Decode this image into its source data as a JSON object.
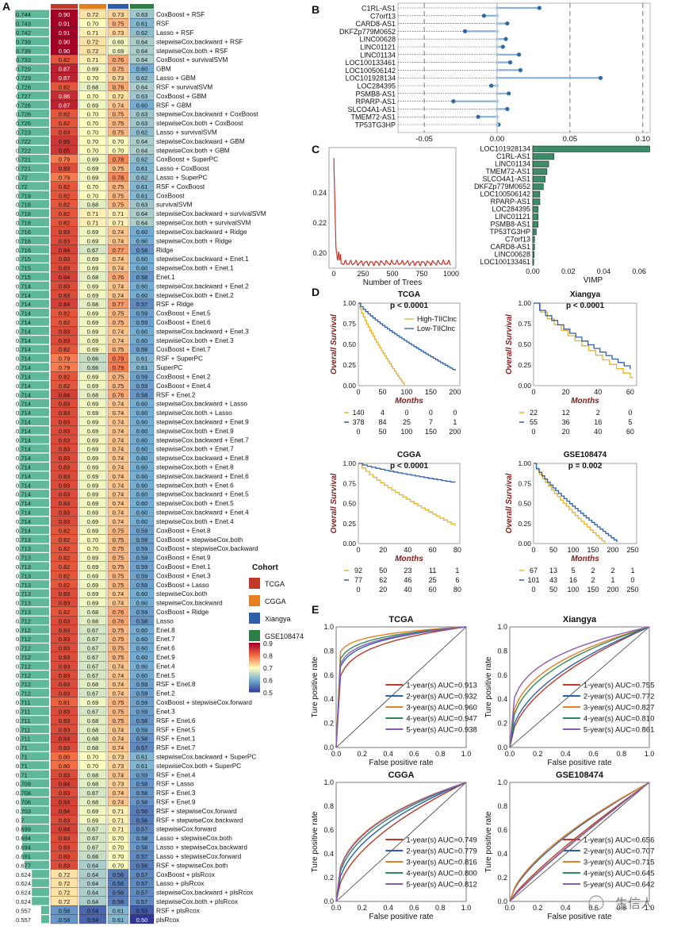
{
  "panels": {
    "A": "A",
    "B": "B",
    "C": "C",
    "D": "D",
    "E": "E"
  },
  "heatmap": {
    "rows": [
      [
        "0.744",
        "0.90",
        "0.72",
        "0.73",
        "0.63",
        "CoxBoost + RSF"
      ],
      [
        "0.743",
        "0.91",
        "0.70",
        "0.75",
        "0.61",
        "RSF"
      ],
      [
        "0.742",
        "0.91",
        "0.71",
        "0.73",
        "0.62",
        "Lasso + RSF"
      ],
      [
        "0.739",
        "0.90",
        "0.72",
        "0.69",
        "0.64",
        "stepwiseCox.backward + RSF"
      ],
      [
        "0.739",
        "0.90",
        "0.72",
        "0.69",
        "0.64",
        "stepwiseCox.both + RSF"
      ],
      [
        "0.733",
        "0.82",
        "0.71",
        "0.76",
        "0.64",
        "CoxBoost + survivalSVM"
      ],
      [
        "0.729",
        "0.87",
        "0.69",
        "0.75",
        "0.60",
        "GBM"
      ],
      [
        "0.729",
        "0.87",
        "0.70",
        "0.73",
        "0.62",
        "Lasso + GBM"
      ],
      [
        "0.728",
        "0.82",
        "0.68",
        "0.76",
        "0.64",
        "RSF + survivalSVM"
      ],
      [
        "0.727",
        "0.86",
        "0.70",
        "0.72",
        "0.63",
        "CoxBoost + GBM"
      ],
      [
        "0.726",
        "0.87",
        "0.69",
        "0.74",
        "0.60",
        "RSF + GBM"
      ],
      [
        "0.726",
        "0.82",
        "0.70",
        "0.75",
        "0.63",
        "stepwiseCox.backward + CoxBoost"
      ],
      [
        "0.726",
        "0.82",
        "0.70",
        "0.75",
        "0.63",
        "stepwiseCox.both + CoxBoost"
      ],
      [
        "0.723",
        "0.83",
        "0.70",
        "0.75",
        "0.62",
        "Lasso + survivalSVM"
      ],
      [
        "0.722",
        "0.85",
        "0.70",
        "0.70",
        "0.64",
        "stepwiseCox.backward + GBM"
      ],
      [
        "0.722",
        "0.85",
        "0.70",
        "0.70",
        "0.64",
        "stepwiseCox.both + GBM"
      ],
      [
        "0.721",
        "0.79",
        "0.69",
        "0.78",
        "0.62",
        "CoxBoost + SuperPC"
      ],
      [
        "0.721",
        "0.83",
        "0.69",
        "0.75",
        "0.61",
        "Lasso + CoxBoost"
      ],
      [
        "0.72",
        "0.79",
        "0.69",
        "0.78",
        "0.62",
        "Lasso + SuperPC"
      ],
      [
        "0.72",
        "0.82",
        "0.70",
        "0.75",
        "0.61",
        "RSF + CoxBoost"
      ],
      [
        "0.719",
        "0.82",
        "0.70",
        "0.75",
        "0.61",
        "CoxBoost"
      ],
      [
        "0.718",
        "0.82",
        "0.68",
        "0.75",
        "0.63",
        "survivalSVM"
      ],
      [
        "0.718",
        "0.82",
        "0.71",
        "0.71",
        "0.64",
        "stepwiseCox.backward + survivalSVM"
      ],
      [
        "0.718",
        "0.82",
        "0.71",
        "0.71",
        "0.64",
        "stepwiseCox.both + survivalSVM"
      ],
      [
        "0.716",
        "0.83",
        "0.69",
        "0.74",
        "0.60",
        "stepwiseCox.backward + Ridge"
      ],
      [
        "0.716",
        "0.83",
        "0.69",
        "0.74",
        "0.60",
        "stepwiseCox.both + Ridge"
      ],
      [
        "0.716",
        "0.84",
        "0.67",
        "0.77",
        "0.58",
        "Ridge"
      ],
      [
        "0.715",
        "0.83",
        "0.69",
        "0.74",
        "0.60",
        "stepwiseCox.backward + Enet.1"
      ],
      [
        "0.715",
        "0.83",
        "0.69",
        "0.74",
        "0.60",
        "stepwiseCox.both + Enet.1"
      ],
      [
        "0.715",
        "0.84",
        "0.68",
        "0.76",
        "0.58",
        "Enet.1"
      ],
      [
        "0.714",
        "0.83",
        "0.69",
        "0.74",
        "0.60",
        "stepwiseCox.backward + Enet.2"
      ],
      [
        "0.714",
        "0.83",
        "0.69",
        "0.74",
        "0.60",
        "stepwiseCox.both + Enet.2"
      ],
      [
        "0.714",
        "0.84",
        "0.68",
        "0.77",
        "0.57",
        "RSF + Ridge"
      ],
      [
        "0.714",
        "0.82",
        "0.69",
        "0.75",
        "0.59",
        "CoxBoost + Enet.5"
      ],
      [
        "0.714",
        "0.82",
        "0.69",
        "0.75",
        "0.59",
        "CoxBoost + Enet.6"
      ],
      [
        "0.714",
        "0.83",
        "0.69",
        "0.74",
        "0.60",
        "stepwiseCox.backward + Enet.3"
      ],
      [
        "0.714",
        "0.83",
        "0.69",
        "0.74",
        "0.60",
        "stepwiseCox.both + Enet.3"
      ],
      [
        "0.714",
        "0.82",
        "0.69",
        "0.75",
        "0.59",
        "CoxBoost + Enet.7"
      ],
      [
        "0.714",
        "0.79",
        "0.66",
        "0.79",
        "0.61",
        "RSF + SuperPC"
      ],
      [
        "0.714",
        "0.79",
        "0.66",
        "0.79",
        "0.61",
        "SuperPC"
      ],
      [
        "0.714",
        "0.82",
        "0.69",
        "0.75",
        "0.59",
        "CoxBoost + Enet.2"
      ],
      [
        "0.714",
        "0.82",
        "0.69",
        "0.75",
        "0.59",
        "CoxBoost + Enet.4"
      ],
      [
        "0.714",
        "0.84",
        "0.68",
        "0.76",
        "0.58",
        "RSF + Enet.2"
      ],
      [
        "0.714",
        "0.83",
        "0.69",
        "0.74",
        "0.60",
        "stepwiseCox.backward + Lasso"
      ],
      [
        "0.714",
        "0.83",
        "0.69",
        "0.74",
        "0.60",
        "stepwiseCox.both + Lasso"
      ],
      [
        "0.714",
        "0.83",
        "0.69",
        "0.74",
        "0.60",
        "stepwiseCox.backward + Enet.9"
      ],
      [
        "0.714",
        "0.83",
        "0.69",
        "0.74",
        "0.60",
        "stepwiseCox.both + Enet.9"
      ],
      [
        "0.714",
        "0.83",
        "0.69",
        "0.74",
        "0.60",
        "stepwiseCox.backward + Enet.7"
      ],
      [
        "0.714",
        "0.83",
        "0.69",
        "0.74",
        "0.60",
        "stepwiseCox.both + Enet.7"
      ],
      [
        "0.714",
        "0.83",
        "0.69",
        "0.74",
        "0.60",
        "stepwiseCox.backward + Enet.8"
      ],
      [
        "0.714",
        "0.83",
        "0.69",
        "0.74",
        "0.60",
        "stepwiseCox.both + Enet.8"
      ],
      [
        "0.714",
        "0.83",
        "0.69",
        "0.74",
        "0.60",
        "stepwiseCox.backward + Enet.6"
      ],
      [
        "0.714",
        "0.83",
        "0.69",
        "0.74",
        "0.60",
        "stepwiseCox.both + Enet.6"
      ],
      [
        "0.714",
        "0.83",
        "0.69",
        "0.74",
        "0.60",
        "stepwiseCox.backward + Enet.5"
      ],
      [
        "0.714",
        "0.83",
        "0.69",
        "0.74",
        "0.60",
        "stepwiseCox.both + Enet.5"
      ],
      [
        "0.714",
        "0.83",
        "0.69",
        "0.74",
        "0.60",
        "stepwiseCox.backward + Enet.4"
      ],
      [
        "0.714",
        "0.83",
        "0.69",
        "0.74",
        "0.60",
        "stepwiseCox.both + Enet.4"
      ],
      [
        "0.714",
        "0.82",
        "0.69",
        "0.75",
        "0.59",
        "CoxBoost + Enet.8"
      ],
      [
        "0.713",
        "0.82",
        "0.70",
        "0.75",
        "0.59",
        "CoxBoost + stepwiseCox.both"
      ],
      [
        "0.713",
        "0.82",
        "0.70",
        "0.75",
        "0.59",
        "CoxBoost + stepwiseCox.backward"
      ],
      [
        "0.713",
        "0.82",
        "0.69",
        "0.75",
        "0.59",
        "CoxBoost + Enet.9"
      ],
      [
        "0.713",
        "0.82",
        "0.69",
        "0.75",
        "0.59",
        "CoxBoost + Enet.1"
      ],
      [
        "0.713",
        "0.82",
        "0.69",
        "0.75",
        "0.59",
        "CoxBoost + Enet.3"
      ],
      [
        "0.713",
        "0.82",
        "0.69",
        "0.75",
        "0.59",
        "CoxBoost + Lasso"
      ],
      [
        "0.713",
        "0.83",
        "0.69",
        "0.74",
        "0.60",
        "stepwiseCox.both"
      ],
      [
        "0.713",
        "0.83",
        "0.69",
        "0.74",
        "0.60",
        "stepwiseCox.backward"
      ],
      [
        "0.713",
        "0.82",
        "0.68",
        "0.76",
        "0.59",
        "CoxBoost + Ridge"
      ],
      [
        "0.712",
        "0.83",
        "0.68",
        "0.76",
        "0.58",
        "Lasso"
      ],
      [
        "0.712",
        "0.83",
        "0.67",
        "0.75",
        "0.60",
        "Enet.8"
      ],
      [
        "0.712",
        "0.83",
        "0.67",
        "0.75",
        "0.60",
        "Enet.7"
      ],
      [
        "0.712",
        "0.83",
        "0.67",
        "0.75",
        "0.60",
        "Enet.6"
      ],
      [
        "0.712",
        "0.83",
        "0.67",
        "0.75",
        "0.60",
        "Enet.9"
      ],
      [
        "0.712",
        "0.83",
        "0.67",
        "0.74",
        "0.60",
        "Enet.4"
      ],
      [
        "0.712",
        "0.83",
        "0.67",
        "0.74",
        "0.60",
        "Enet.5"
      ],
      [
        "0.712",
        "0.83",
        "0.68",
        "0.74",
        "0.59",
        "RSF + Enet.8"
      ],
      [
        "0.712",
        "0.83",
        "0.67",
        "0.74",
        "0.59",
        "Enet.2"
      ],
      [
        "0.711",
        "0.81",
        "0.69",
        "0.75",
        "0.59",
        "CoxBoost + stepwiseCox.forward"
      ],
      [
        "0.711",
        "0.83",
        "0.67",
        "0.75",
        "0.59",
        "Enet.3"
      ],
      [
        "0.711",
        "0.83",
        "0.68",
        "0.75",
        "0.58",
        "RSF + Enet.6"
      ],
      [
        "0.711",
        "0.83",
        "0.68",
        "0.74",
        "0.59",
        "RSF + Enet.5"
      ],
      [
        "0.711",
        "0.84",
        "0.68",
        "0.74",
        "0.58",
        "RSF + Enet.1"
      ],
      [
        "0.71",
        "0.83",
        "0.68",
        "0.74",
        "0.57",
        "RSF + Enet.7"
      ],
      [
        "0.71",
        "0.80",
        "0.70",
        "0.73",
        "0.61",
        "stepwiseCox.backward + SuperPC"
      ],
      [
        "0.71",
        "0.80",
        "0.70",
        "0.73",
        "0.61",
        "stepwiseCox.both + SuperPC"
      ],
      [
        "0.71",
        "0.83",
        "0.68",
        "0.74",
        "0.59",
        "RSF + Enet.4"
      ],
      [
        "0.709",
        "0.84",
        "0.68",
        "0.73",
        "0.58",
        "RSF + Lasso"
      ],
      [
        "0.708",
        "0.83",
        "0.67",
        "0.74",
        "0.58",
        "RSF + Enet.3"
      ],
      [
        "0.706",
        "0.84",
        "0.68",
        "0.74",
        "0.58",
        "RSF + Enet.9"
      ],
      [
        "0.703",
        "0.84",
        "0.69",
        "0.71",
        "0.56",
        "RSF + stepwiseCox.forward"
      ],
      [
        "0.7",
        "0.83",
        "0.69",
        "0.71",
        "0.56",
        "RSF + stepwiseCox.backward"
      ],
      [
        "0.699",
        "0.84",
        "0.67",
        "0.71",
        "0.57",
        "stepwiseCox.forward"
      ],
      [
        "0.694",
        "0.83",
        "0.67",
        "0.70",
        "0.58",
        "Lasso + stepwiseCox.both"
      ],
      [
        "0.694",
        "0.83",
        "0.67",
        "0.70",
        "0.58",
        "Lasso + stepwiseCox.backward"
      ],
      [
        "0.691",
        "0.83",
        "0.66",
        "0.70",
        "0.57",
        "Lasso + stepwiseCox.forward"
      ],
      [
        "0.677",
        "0.83",
        "0.64",
        "0.70",
        "0.56",
        "RSF + stepwiseCox.both"
      ],
      [
        "0.624",
        "0.72",
        "0.64",
        "0.56",
        "0.57",
        "CoxBoost + plsRcox"
      ],
      [
        "0.624",
        "0.72",
        "0.64",
        "0.56",
        "0.57",
        "Lasso + plsRcox"
      ],
      [
        "0.624",
        "0.72",
        "0.64",
        "0.56",
        "0.57",
        "stepwiseCox.backward + plsRcox"
      ],
      [
        "0.624",
        "0.72",
        "0.64",
        "0.56",
        "0.57",
        "stepwiseCox.both + plsRcox"
      ],
      [
        "0.557",
        "0.58",
        "0.54",
        "0.61",
        "0.53",
        "RSF + plsRcox"
      ],
      [
        "0.557",
        "0.58",
        "0.54",
        "0.61",
        "0.50",
        "plsRcox"
      ]
    ],
    "legend": {
      "cohort_title": "Cohort",
      "cohorts": [
        {
          "name": "TCGA",
          "color": "#c0392b"
        },
        {
          "name": "CGGA",
          "color": "#e67e22"
        },
        {
          "name": "Xiangya",
          "color": "#2e5fa8"
        },
        {
          "name": "GSE108474",
          "color": "#2e7d46"
        }
      ],
      "scale_ticks": [
        "0.9",
        "0.8",
        "0.7",
        "0.6",
        "0.5"
      ]
    }
  },
  "panelB": {
    "genes": [
      "C1RL-AS1",
      "C7orf13",
      "CARD8-AS1",
      "DKFZp779M0652",
      "LINC00628",
      "LINC01121",
      "LINC01134",
      "LOC100133461",
      "LOC100506142",
      "LOC101928134",
      "LOC284395",
      "PSMB8-AS1",
      "RPARP-AS1",
      "SLCO4A1-AS1",
      "TMEM72-AS1",
      "TP53TG3HP"
    ],
    "values": [
      0.029,
      -0.009,
      0.007,
      -0.022,
      0.006,
      0.004,
      0.015,
      0.009,
      0.016,
      0.071,
      -0.004,
      0.008,
      -0.03,
      0.007,
      -0.013,
      0.001
    ],
    "xticks": [
      "-0.05",
      "0.00",
      "0.05",
      "0.10"
    ]
  },
  "panelC": {
    "xlabel_left": "Number of Trees",
    "xticks_left": [
      "0",
      "250",
      "500",
      "750",
      "1000"
    ],
    "yticks_left": [
      "0.24",
      "0.22",
      "0.20"
    ],
    "vimp_genes": [
      "LOC101928134",
      "C1RL-AS1",
      "LINC01134",
      "TMEM72-AS1",
      "SLCO4A1-AS1",
      "DKFZp779M0652",
      "LOC100506142",
      "RPARP-AS1",
      "LOC284395",
      "LINC01121",
      "PSMB8-AS1",
      "TP53TG3HP",
      "C7orf13",
      "CARD8-AS1",
      "LINC00628",
      "LOC100133461"
    ],
    "vimp_values": [
      0.066,
      0.012,
      0.009,
      0.008,
      0.007,
      0.006,
      0.004,
      0.004,
      0.003,
      0.003,
      0.003,
      0.002,
      0.001,
      0.001,
      0.0008,
      0.0005
    ],
    "xlabel_right": "VIMP",
    "xticks_right": [
      "0.00",
      "0.02",
      "0.04",
      "0.06"
    ]
  },
  "panelD": {
    "ylabel": "Overall Survival",
    "xlabel": "Months",
    "legend_high": "High-TIIClnc",
    "legend_low": "Low-TIIClnc",
    "plots": [
      {
        "title": "TCGA",
        "p": "p < 0.0001",
        "xticks": [
          "0",
          "50",
          "100",
          "150",
          "200"
        ],
        "risk_high": [
          "140",
          "4",
          "0",
          "0",
          "0"
        ],
        "risk_low": [
          "378",
          "84",
          "25",
          "7",
          "1"
        ]
      },
      {
        "title": "Xiangya",
        "p": "p < 0.0001",
        "xticks": [
          "0",
          "20",
          "40",
          "60"
        ],
        "risk_high": [
          "22",
          "12",
          "2",
          "0"
        ],
        "risk_low": [
          "55",
          "36",
          "16",
          "5"
        ]
      },
      {
        "title": "CGGA",
        "p": "p < 0.0001",
        "xticks": [
          "0",
          "20",
          "40",
          "60",
          "80"
        ],
        "risk_high": [
          "92",
          "50",
          "23",
          "11",
          "1"
        ],
        "risk_low": [
          "77",
          "62",
          "46",
          "25",
          "6"
        ]
      },
      {
        "title": "GSE108474",
        "p": "p = 0.002",
        "xticks": [
          "0",
          "50",
          "100",
          "150",
          "200",
          "250"
        ],
        "risk_high": [
          "67",
          "13",
          "5",
          "2",
          "2",
          "1"
        ],
        "risk_low": [
          "101",
          "43",
          "16",
          "2",
          "1",
          "0"
        ]
      }
    ],
    "yticks": [
      "1.00",
      "0.75",
      "0.50",
      "0.25",
      "0.00"
    ]
  },
  "panelE": {
    "ylabel": "Ture positive rate",
    "xlabel": "False positive rate",
    "ticks": [
      "0.0",
      "0.2",
      "0.4",
      "0.6",
      "0.8",
      "1.0"
    ],
    "colors": [
      "#c0392b",
      "#2e5fa8",
      "#e67e22",
      "#2e8b57",
      "#8e5ab5"
    ],
    "plots": [
      {
        "title": "TCGA",
        "labels": [
          "1-year(s)  AUC=0.913",
          "2-year(s)  AUC=0.932",
          "3-year(s)  AUC=0.960",
          "4-year(s)  AUC=0.947",
          "5-year(s)  AUC=0.938"
        ]
      },
      {
        "title": "Xiangya",
        "labels": [
          "1-year(s)  AUC=0.755",
          "2-year(s)  AUC=0.772",
          "3-year(s)  AUC=0.827",
          "4-year(s)  AUC=0.810",
          "5-year(s)  AUC=0.861"
        ]
      },
      {
        "title": "CGGA",
        "labels": [
          "1-year(s)  AUC=0.749",
          "2-year(s)  AUC=0.779",
          "3-year(s)  AUC=0.816",
          "4-year(s)  AUC=0.800",
          "5-year(s)  AUC=0.812"
        ]
      },
      {
        "title": "GSE108474",
        "labels": [
          "1-year(s)  AUC=0.656",
          "2-year(s)  AUC=0.707",
          "3-year(s)  AUC=0.715",
          "4-year(s)  AUC=0.645",
          "5-year(s)  AUC=0.642"
        ]
      }
    ]
  },
  "watermark": "生信人"
}
